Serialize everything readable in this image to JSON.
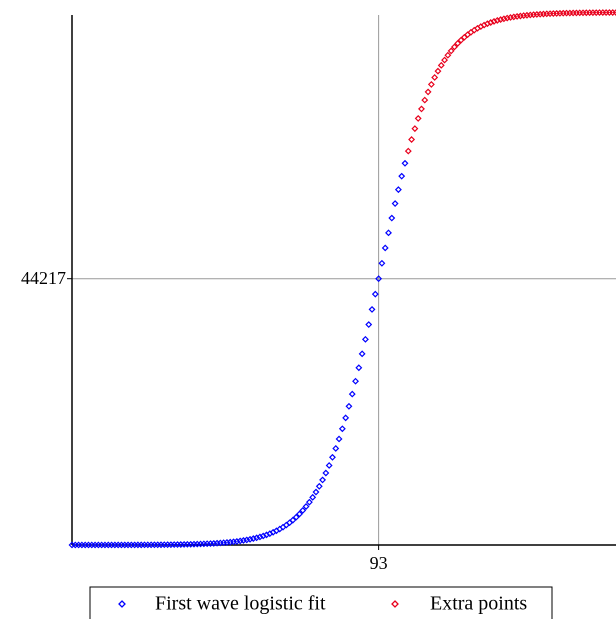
{
  "chart_data": {
    "type": "scatter",
    "xlim": [
      0,
      165
    ],
    "ylim": [
      0,
      88000
    ],
    "xticks": [
      93
    ],
    "yticks": [
      44217
    ],
    "grid": true,
    "legend": "bottom",
    "series": [
      {
        "name": "First wave logistic fit",
        "color": "#0000ff",
        "x": [
          0,
          1,
          2,
          3,
          4,
          5,
          6,
          7,
          8,
          9,
          10,
          11,
          12,
          13,
          14,
          15,
          16,
          17,
          18,
          19,
          20,
          21,
          22,
          23,
          24,
          25,
          26,
          27,
          28,
          29,
          30,
          31,
          32,
          33,
          34,
          35,
          36,
          37,
          38,
          39,
          40,
          41,
          42,
          43,
          44,
          45,
          46,
          47,
          48,
          49,
          50,
          51,
          52,
          53,
          54,
          55,
          56,
          57,
          58,
          59,
          60,
          61,
          62,
          63,
          64,
          65,
          66,
          67,
          68,
          69,
          70,
          71,
          72,
          73,
          74,
          75,
          76,
          77,
          78,
          79,
          80,
          81,
          82,
          83,
          84,
          85,
          86,
          87,
          88,
          89,
          90,
          91,
          92,
          93,
          94,
          95,
          96,
          97,
          98,
          99,
          100,
          101
        ],
        "values": [
          2,
          2,
          2,
          3,
          3,
          3,
          4,
          4,
          5,
          5,
          6,
          7,
          7,
          8,
          9,
          10,
          12,
          13,
          15,
          17,
          19,
          21,
          23,
          26,
          30,
          33,
          37,
          42,
          47,
          53,
          59,
          66,
          75,
          84,
          94,
          106,
          119,
          133,
          150,
          168,
          189,
          212,
          238,
          267,
          300,
          336,
          378,
          424,
          476,
          535,
          599,
          672,
          754,
          846,
          950,
          1065,
          1194,
          1338,
          1500,
          1681,
          1883,
          2109,
          2361,
          2643,
          2958,
          3307,
          3697,
          4131,
          4613,
          5147,
          5739,
          6394,
          7115,
          7917,
          8791,
          9752,
          10806,
          11955,
          13205,
          14562,
          16030,
          17606,
          19300,
          21106,
          23030,
          25059,
          27194,
          29429,
          31742,
          34144,
          36604,
          39113,
          41655,
          44217,
          46779,
          49321,
          51830,
          54290,
          56692,
          59005,
          61240,
          63375
        ]
      },
      {
        "name": "Extra points",
        "color": "#e8001c",
        "x": [
          102,
          103,
          104,
          105,
          106,
          107,
          108,
          109,
          110,
          111,
          112,
          113,
          114,
          115,
          116,
          117,
          118,
          119,
          120,
          121,
          122,
          123,
          124,
          125,
          126,
          127,
          128,
          129,
          130,
          131,
          132,
          133,
          134,
          135,
          136,
          137,
          138,
          139,
          140,
          141,
          142,
          143,
          144,
          145,
          146,
          147,
          148,
          149,
          150,
          151,
          152,
          153,
          154,
          155,
          156,
          157,
          158,
          159,
          160,
          161,
          162,
          163,
          164,
          165
        ],
        "values": [
          65404,
          67328,
          69134,
          70828,
          72404,
          73872,
          75229,
          76479,
          77628,
          78682,
          79643,
          80517,
          81319,
          82040,
          82695,
          83287,
          83821,
          84303,
          84737,
          85127,
          85476,
          85791,
          86073,
          86325,
          86551,
          86753,
          86934,
          87096,
          87240,
          87369,
          87484,
          87588,
          87680,
          87762,
          87835,
          87899,
          87958,
          88010,
          88056,
          88098,
          88134,
          88167,
          88196,
          88222,
          88245,
          88266,
          88284,
          88301,
          88315,
          88328,
          88340,
          88350,
          88359,
          88368,
          88375,
          88381,
          88387,
          88392,
          88397,
          88401,
          88404,
          88408,
          88411,
          88413
        ]
      }
    ]
  }
}
